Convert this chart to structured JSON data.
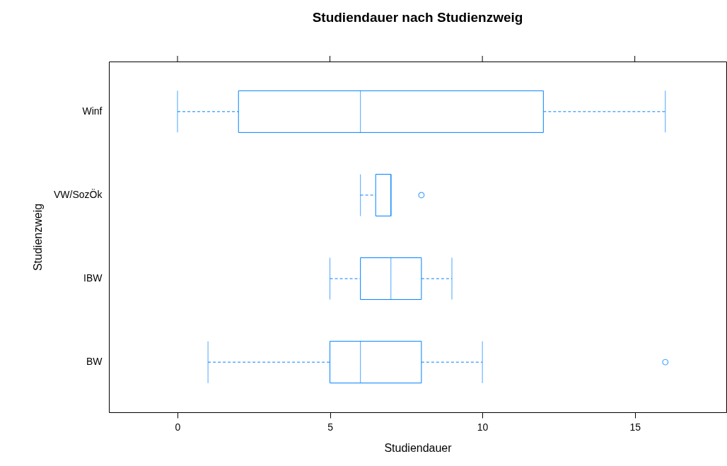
{
  "chart_data": {
    "type": "box",
    "orientation": "horizontal",
    "title": "Studiendauer nach Studienzweig",
    "xlabel": "Studiendauer",
    "ylabel": "Studienzweig",
    "categories": [
      "Winf",
      "VW/SozÖk",
      "IBW",
      "BW"
    ],
    "xlim": [
      -2.25,
      18
    ],
    "xticks": [
      0,
      5,
      10,
      15
    ],
    "line_style": "dashed",
    "marker": "circle",
    "series": [
      {
        "color": "#0080ff",
        "boxes": [
          {
            "low": 0,
            "q1": 2,
            "median": 6,
            "q3": 12,
            "high": 16
          },
          {
            "low": 6,
            "q1": 6.5,
            "median": 7,
            "q3": 7,
            "high": 7,
            "outliers": [
              8
            ]
          },
          {
            "low": 5,
            "q1": 6,
            "median": 7,
            "q3": 8,
            "high": 9
          },
          {
            "low": 1,
            "q1": 5,
            "median": 6,
            "q3": 8,
            "high": 10,
            "outliers": [
              16
            ]
          }
        ]
      }
    ]
  }
}
